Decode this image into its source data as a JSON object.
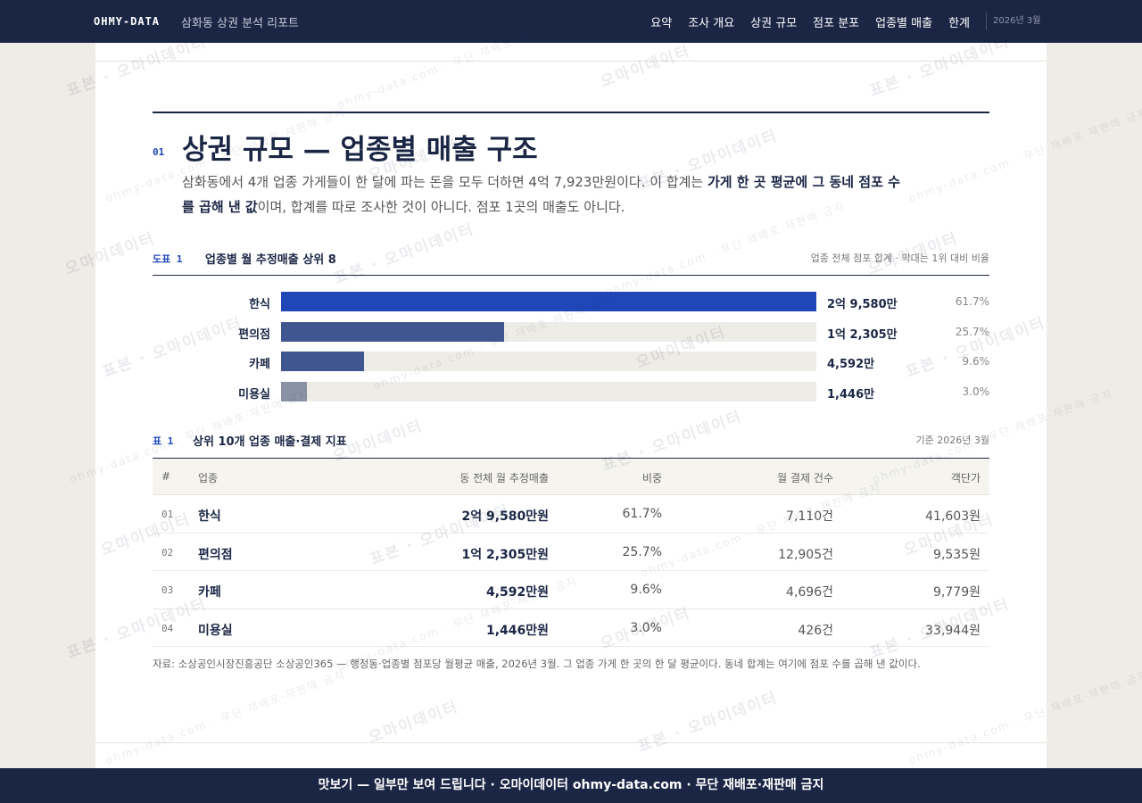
{
  "nav": {
    "brand": "OHMY-DATA",
    "subtitle": "삼화동 상권 분석 리포트",
    "links": [
      "요약",
      "조사 개요",
      "상권 규모",
      "점포 분포",
      "업종별 매출",
      "한계"
    ],
    "date": "2026년 3월"
  },
  "section": {
    "number": "01",
    "title": "상권 규모 — 업종별 매출 구조",
    "lead": [
      "삼화동에서 4개 업종 가게들이 한 달에 파는 돈을 모두 더하면 4억 7,923만원이다. 이 합계는 ",
      "가게 한 곳 평균에 그 동네 점포 수를 곱해 낸 값",
      "이며, 합계를 따로 조사한 것이 아니다. 점포 1곳의 매출도 아니다."
    ]
  },
  "chart_data": {
    "type": "bar",
    "orientation": "horizontal",
    "label": "도표 1",
    "title": "업종별 월 추정매출 상위 8",
    "note": "업종 전체 점포 합계 · 막대는 1위 대비 비율",
    "categories": [
      "한식",
      "편의점",
      "카페",
      "미용실"
    ],
    "values": [
      29580,
      12305,
      4592,
      1446
    ],
    "value_labels": [
      "2억 9,580만",
      "1억 2,305만",
      "4,592만",
      "1,446만"
    ],
    "share_labels": [
      "61.7%",
      "25.7%",
      "9.6%",
      "3.0%"
    ],
    "colors": [
      "#1f47b8",
      "#3f5690",
      "#3f5690",
      "#8a92a6"
    ],
    "track_color": "#eeece6"
  },
  "table": {
    "label": "표 1",
    "title": "상위 10개 업종 매출·결제 지표",
    "note": "기준 2026년 3월",
    "columns": [
      "#",
      "업종",
      "동 전체 월 추정매출",
      "비중",
      "월 결제 건수",
      "객단가"
    ],
    "rows": [
      [
        "01",
        "한식",
        "2억 9,580만원",
        "61.7%",
        "7,110건",
        "41,603원"
      ],
      [
        "02",
        "편의점",
        "1억 2,305만원",
        "25.7%",
        "12,905건",
        "9,535원"
      ],
      [
        "03",
        "카페",
        "4,592만원",
        "9.6%",
        "4,696건",
        "9,779원"
      ],
      [
        "04",
        "미용실",
        "1,446만원",
        "3.0%",
        "426건",
        "33,944원"
      ]
    ]
  },
  "source": "자료: 소상공인시장진흥공단 소상공인365 — 행정동·업종별 점포당 월평균 매출, 2026년 3월. 그 업종 가게 한 곳의 한 달 평균이다. 동네 합계는 여기에 점포 수를 곱해 낸 값이다.",
  "watermark": [
    "표본 · 오마이데이터",
    "ohmy-data.com · 무단 재배포·재판매 금지",
    "오마이데이터"
  ],
  "footer": "맛보기 — 일부만 보여 드립니다 · 오마이데이터 ohmy-data.com · 무단 재배포·재판매 금지"
}
